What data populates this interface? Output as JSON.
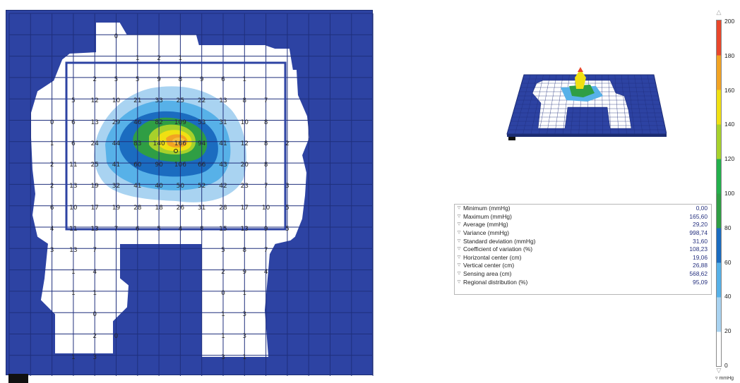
{
  "pressure_map": {
    "outer_rows": 17,
    "outer_cols": 17,
    "colors": {
      "background_grid": "#2d43a3",
      "sensing": "#ffffff",
      "level_1": "#a9d3f1",
      "level_2": "#57b1e8",
      "level_3": "#1b6cc0",
      "level_4": "#2f9e44",
      "level_5": "#f0e012",
      "level_6": "#f2a323",
      "level_7": "#e9472b"
    },
    "number_rows": [
      {
        "row": 1,
        "cells": [
          [
            5,
            "0"
          ]
        ]
      },
      {
        "row": 2,
        "cells": [
          [
            6,
            "1"
          ],
          [
            7,
            "2"
          ],
          [
            8,
            "1"
          ]
        ]
      },
      {
        "row": 3,
        "cells": [
          [
            4,
            "2"
          ],
          [
            5,
            "5"
          ],
          [
            6,
            "5"
          ],
          [
            7,
            "9"
          ],
          [
            8,
            "8"
          ],
          [
            9,
            "9"
          ],
          [
            10,
            "6"
          ],
          [
            11,
            "1"
          ]
        ]
      },
      {
        "row": 4,
        "cells": [
          [
            3,
            "5"
          ],
          [
            4,
            "12"
          ],
          [
            5,
            "10"
          ],
          [
            6,
            "21"
          ],
          [
            7,
            "33"
          ],
          [
            8,
            "25"
          ],
          [
            9,
            "22"
          ],
          [
            10,
            "13"
          ],
          [
            11,
            "8"
          ],
          [
            12,
            "7"
          ]
        ]
      },
      {
        "row": 5,
        "cells": [
          [
            2,
            "0"
          ],
          [
            3,
            "6"
          ],
          [
            4,
            "13"
          ],
          [
            5,
            "29"
          ],
          [
            6,
            "46"
          ],
          [
            7,
            "82"
          ],
          [
            8,
            "109"
          ],
          [
            9,
            "53"
          ],
          [
            10,
            "31"
          ],
          [
            11,
            "10"
          ],
          [
            12,
            "8"
          ]
        ]
      },
      {
        "row": 6,
        "cells": [
          [
            2,
            "1"
          ],
          [
            3,
            "6"
          ],
          [
            4,
            "24"
          ],
          [
            5,
            "44"
          ],
          [
            6,
            "83"
          ],
          [
            7,
            "140"
          ],
          [
            8,
            "166"
          ],
          [
            9,
            "94"
          ],
          [
            10,
            "41"
          ],
          [
            11,
            "12"
          ],
          [
            12,
            "8"
          ],
          [
            13,
            "2"
          ]
        ]
      },
      {
        "row": 7,
        "cells": [
          [
            2,
            "2"
          ],
          [
            3,
            "11"
          ],
          [
            4,
            "25"
          ],
          [
            5,
            "41"
          ],
          [
            6,
            "60"
          ],
          [
            7,
            "90"
          ],
          [
            8,
            "106"
          ],
          [
            9,
            "66"
          ],
          [
            10,
            "43"
          ],
          [
            11,
            "20"
          ],
          [
            12,
            "8"
          ]
        ]
      },
      {
        "row": 8,
        "cells": [
          [
            2,
            "2"
          ],
          [
            3,
            "13"
          ],
          [
            4,
            "19"
          ],
          [
            5,
            "32"
          ],
          [
            6,
            "41"
          ],
          [
            7,
            "40"
          ],
          [
            8,
            "50"
          ],
          [
            9,
            "52"
          ],
          [
            10,
            "42"
          ],
          [
            11,
            "23"
          ],
          [
            12,
            "7"
          ],
          [
            13,
            "3"
          ]
        ]
      },
      {
        "row": 9,
        "cells": [
          [
            2,
            "6"
          ],
          [
            3,
            "10"
          ],
          [
            4,
            "17"
          ],
          [
            5,
            "19"
          ],
          [
            6,
            "28"
          ],
          [
            7,
            "18"
          ],
          [
            8,
            "26"
          ],
          [
            9,
            "31"
          ],
          [
            10,
            "28"
          ],
          [
            11,
            "17"
          ],
          [
            12,
            "10"
          ],
          [
            13,
            "5"
          ]
        ]
      },
      {
        "row": 10,
        "cells": [
          [
            2,
            "4"
          ],
          [
            3,
            "11"
          ],
          [
            4,
            "13"
          ],
          [
            5,
            "7"
          ],
          [
            6,
            "6"
          ],
          [
            7,
            "5"
          ],
          [
            8,
            "4"
          ],
          [
            9,
            "8"
          ],
          [
            10,
            "15"
          ],
          [
            11,
            "13"
          ],
          [
            12,
            "9"
          ],
          [
            13,
            "5"
          ]
        ]
      },
      {
        "row": 11,
        "cells": [
          [
            2,
            "3"
          ],
          [
            3,
            "13"
          ],
          [
            4,
            "7"
          ],
          [
            10,
            "5"
          ],
          [
            11,
            "8"
          ],
          [
            12,
            "7"
          ]
        ]
      },
      {
        "row": 12,
        "cells": [
          [
            3,
            "1"
          ],
          [
            4,
            "4"
          ],
          [
            10,
            "2"
          ],
          [
            11,
            "9"
          ],
          [
            12,
            "4"
          ]
        ]
      },
      {
        "row": 13,
        "cells": [
          [
            3,
            "1"
          ],
          [
            4,
            "1"
          ],
          [
            10,
            "0"
          ],
          [
            11,
            "1"
          ]
        ]
      },
      {
        "row": 14,
        "cells": [
          [
            4,
            "0"
          ],
          [
            10,
            "1"
          ],
          [
            11,
            "3"
          ]
        ]
      },
      {
        "row": 15,
        "cells": [
          [
            4,
            "2"
          ],
          [
            5,
            "0"
          ],
          [
            10,
            "1"
          ],
          [
            11,
            "3"
          ]
        ]
      },
      {
        "row": 16,
        "cells": [
          [
            3,
            "1"
          ],
          [
            4,
            "3"
          ],
          [
            10,
            "3"
          ],
          [
            11,
            "1"
          ]
        ]
      }
    ]
  },
  "statistics": [
    {
      "label": "Minimum (mmHg)",
      "value": "0,00"
    },
    {
      "label": "Maximum (mmHg)",
      "value": "165,60"
    },
    {
      "label": "Average (mmHg)",
      "value": "29,20"
    },
    {
      "label": "Variance (mmHg)",
      "value": "998,74"
    },
    {
      "label": "Standard deviation (mmHg)",
      "value": "31,60"
    },
    {
      "label": "Coefficient of variation (%)",
      "value": "108,23"
    },
    {
      "label": "Horizontal center (cm)",
      "value": "19,06"
    },
    {
      "label": "Vertical center (cm)",
      "value": "26,88"
    },
    {
      "label": "Sensing area (cm)",
      "value": "568,62"
    },
    {
      "label": "Regional distribution (%)",
      "value": "95,09"
    }
  ],
  "color_scale": {
    "min": 0,
    "max": 200,
    "ticks": [
      "200",
      "180",
      "160",
      "140",
      "120",
      "100",
      "80",
      "60",
      "40",
      "20",
      "0"
    ],
    "unit": "▿ mmHg",
    "bands": [
      "#ffffff",
      "#a9d3f1",
      "#57b1e8",
      "#1b6cc0",
      "#2f9e44",
      "#23b04c",
      "#a7d12b",
      "#f0e012",
      "#f2a323",
      "#e9472b"
    ]
  },
  "icons": {
    "row_marker": "triangle-down-icon",
    "scale_arrow_up": "triangle-up-icon",
    "scale_arrow_down": "triangle-down-icon"
  }
}
